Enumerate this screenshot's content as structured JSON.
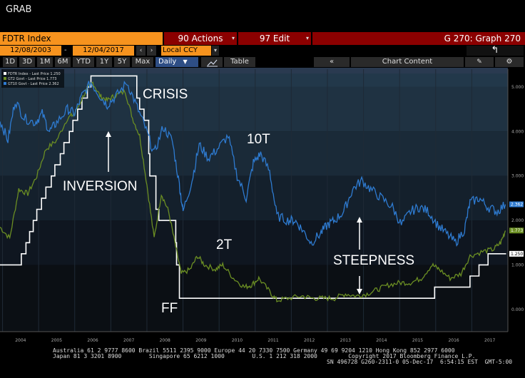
{
  "window": {
    "title": "GRAB"
  },
  "toolbar": {
    "ticker": "FDTR Index",
    "actions_label": "90 Actions",
    "edit_label": "97 Edit",
    "graph_title": "G 270: Graph 270",
    "date_from": "12/08/2003",
    "date_to": "12/04/2017",
    "currency": "Local CCY",
    "periods": [
      "1D",
      "3D",
      "1M",
      "6M",
      "YTD",
      "1Y",
      "5Y",
      "Max"
    ],
    "frequency": "Daily",
    "table_label": "Table",
    "chart_content_label": "Chart Content"
  },
  "legend": [
    {
      "label": "FDTR Index - Last Price  1.250",
      "color": "#ffffff"
    },
    {
      "label": "GT2 Govt - Last Price  1.773",
      "color": "#6b8e23"
    },
    {
      "label": "GT10 Govt - Last Price  2.362",
      "color": "#2e7bd1"
    }
  ],
  "annotations": {
    "crisis": "CRISIS",
    "ten_t": "10T",
    "inversion": "INVERSION",
    "two_t": "2T",
    "steepness": "STEEPNESS",
    "ff": "FF"
  },
  "footer": {
    "line1": "Australia 61 2 9777 8600 Brazil 5511 2395 9000 Europe 44 20 7330 7500 Germany 49 69 9204 1210 Hong Kong 852 2977 6000",
    "line2": "Japan 81 3 3201 8900        Singapore 65 6212 1000        U.S. 1 212 318 2000         Copyright 2017 Bloomberg Finance L.P.",
    "line3": "SN 496728 G260-2311-0 05-Dec-17  6:54:15 EST  GMT-5:00"
  },
  "colors": {
    "ff": "#ffffff",
    "gt2": "#6b8e23",
    "gt10": "#2e7bd1",
    "orange": "#f7931e",
    "darkred": "#8b0000"
  },
  "chart_data": {
    "type": "line",
    "x_ticks": [
      "2004",
      "2005",
      "2006",
      "2007",
      "2008",
      "2009",
      "2010",
      "2011",
      "2012",
      "2013",
      "2014",
      "2015",
      "2016",
      "2017"
    ],
    "y_ticks": [
      "0.000",
      "1.000",
      "2.000",
      "3.000",
      "4.000",
      "5.000"
    ],
    "ylim": [
      -0.5,
      5.4
    ],
    "xlim": [
      2003.93,
      2018.0
    ],
    "last_values": {
      "ff": "1.250",
      "gt2": "1.773",
      "gt10": "2.362"
    },
    "series": [
      {
        "name": "FDTR Index",
        "key": "ff",
        "points": [
          [
            2003.93,
            1.0
          ],
          [
            2004.5,
            1.0
          ],
          [
            2004.52,
            1.25
          ],
          [
            2004.65,
            1.5
          ],
          [
            2004.75,
            1.75
          ],
          [
            2004.85,
            2.0
          ],
          [
            2004.95,
            2.25
          ],
          [
            2005.08,
            2.5
          ],
          [
            2005.2,
            2.75
          ],
          [
            2005.35,
            3.0
          ],
          [
            2005.45,
            3.25
          ],
          [
            2005.6,
            3.5
          ],
          [
            2005.7,
            3.75
          ],
          [
            2005.85,
            4.0
          ],
          [
            2005.95,
            4.25
          ],
          [
            2006.08,
            4.5
          ],
          [
            2006.2,
            4.75
          ],
          [
            2006.35,
            5.0
          ],
          [
            2006.45,
            5.25
          ],
          [
            2007.7,
            5.25
          ],
          [
            2007.72,
            4.75
          ],
          [
            2007.8,
            4.5
          ],
          [
            2007.92,
            4.25
          ],
          [
            2008.05,
            3.5
          ],
          [
            2008.08,
            3.0
          ],
          [
            2008.25,
            2.25
          ],
          [
            2008.33,
            2.0
          ],
          [
            2008.8,
            1.5
          ],
          [
            2008.82,
            1.0
          ],
          [
            2008.9,
            0.25
          ],
          [
            2015.95,
            0.25
          ],
          [
            2015.97,
            0.5
          ],
          [
            2016.95,
            0.75
          ],
          [
            2017.2,
            1.0
          ],
          [
            2017.45,
            1.25
          ],
          [
            2017.95,
            1.25
          ]
        ]
      },
      {
        "name": "GT2 Govt",
        "key": "gt2",
        "points": [
          [
            2003.93,
            1.85
          ],
          [
            2004.2,
            1.6
          ],
          [
            2004.45,
            2.7
          ],
          [
            2004.7,
            2.6
          ],
          [
            2004.95,
            3.0
          ],
          [
            2005.2,
            3.6
          ],
          [
            2005.5,
            3.8
          ],
          [
            2005.8,
            4.3
          ],
          [
            2006.0,
            4.4
          ],
          [
            2006.3,
            4.9
          ],
          [
            2006.5,
            5.1
          ],
          [
            2006.7,
            4.8
          ],
          [
            2006.9,
            4.7
          ],
          [
            2007.1,
            4.8
          ],
          [
            2007.4,
            4.9
          ],
          [
            2007.6,
            4.3
          ],
          [
            2007.8,
            3.9
          ],
          [
            2008.0,
            2.8
          ],
          [
            2008.2,
            1.6
          ],
          [
            2008.4,
            2.6
          ],
          [
            2008.6,
            2.2
          ],
          [
            2008.8,
            1.4
          ],
          [
            2008.95,
            0.8
          ],
          [
            2009.2,
            0.9
          ],
          [
            2009.4,
            1.2
          ],
          [
            2009.6,
            1.0
          ],
          [
            2009.9,
            0.9
          ],
          [
            2010.1,
            1.0
          ],
          [
            2010.4,
            0.7
          ],
          [
            2010.7,
            0.5
          ],
          [
            2010.9,
            0.55
          ],
          [
            2011.1,
            0.7
          ],
          [
            2011.4,
            0.4
          ],
          [
            2011.6,
            0.2
          ],
          [
            2011.9,
            0.25
          ],
          [
            2012.3,
            0.3
          ],
          [
            2012.6,
            0.25
          ],
          [
            2012.9,
            0.25
          ],
          [
            2013.2,
            0.25
          ],
          [
            2013.5,
            0.35
          ],
          [
            2013.8,
            0.3
          ],
          [
            2014.1,
            0.35
          ],
          [
            2014.4,
            0.45
          ],
          [
            2014.7,
            0.55
          ],
          [
            2015.0,
            0.6
          ],
          [
            2015.3,
            0.6
          ],
          [
            2015.6,
            0.7
          ],
          [
            2015.9,
            1.0
          ],
          [
            2016.1,
            0.9
          ],
          [
            2016.4,
            0.7
          ],
          [
            2016.7,
            0.8
          ],
          [
            2016.95,
            1.2
          ],
          [
            2017.3,
            1.3
          ],
          [
            2017.6,
            1.35
          ],
          [
            2017.8,
            1.5
          ],
          [
            2017.93,
            1.77
          ]
        ]
      },
      {
        "name": "GT10 Govt",
        "key": "gt10",
        "points": [
          [
            2003.93,
            4.25
          ],
          [
            2004.15,
            3.8
          ],
          [
            2004.35,
            4.7
          ],
          [
            2004.6,
            4.3
          ],
          [
            2004.9,
            4.2
          ],
          [
            2005.1,
            4.4
          ],
          [
            2005.3,
            4.0
          ],
          [
            2005.5,
            4.2
          ],
          [
            2005.8,
            4.5
          ],
          [
            2006.0,
            4.4
          ],
          [
            2006.2,
            4.8
          ],
          [
            2006.45,
            5.1
          ],
          [
            2006.7,
            4.8
          ],
          [
            2006.9,
            4.6
          ],
          [
            2007.15,
            4.8
          ],
          [
            2007.45,
            5.1
          ],
          [
            2007.7,
            4.6
          ],
          [
            2007.95,
            4.1
          ],
          [
            2008.2,
            3.5
          ],
          [
            2008.45,
            4.1
          ],
          [
            2008.7,
            3.8
          ],
          [
            2008.9,
            2.8
          ],
          [
            2009.0,
            2.2
          ],
          [
            2009.25,
            2.9
          ],
          [
            2009.45,
            3.7
          ],
          [
            2009.7,
            3.4
          ],
          [
            2009.95,
            3.6
          ],
          [
            2010.25,
            3.9
          ],
          [
            2010.5,
            3.0
          ],
          [
            2010.75,
            2.5
          ],
          [
            2010.95,
            3.3
          ],
          [
            2011.15,
            3.5
          ],
          [
            2011.4,
            3.1
          ],
          [
            2011.6,
            2.1
          ],
          [
            2011.9,
            2.0
          ],
          [
            2012.1,
            2.0
          ],
          [
            2012.3,
            1.8
          ],
          [
            2012.55,
            1.5
          ],
          [
            2012.8,
            1.7
          ],
          [
            2013.0,
            1.9
          ],
          [
            2013.2,
            2.0
          ],
          [
            2013.45,
            2.2
          ],
          [
            2013.7,
            2.7
          ],
          [
            2013.95,
            2.9
          ],
          [
            2014.2,
            2.7
          ],
          [
            2014.5,
            2.5
          ],
          [
            2014.8,
            2.3
          ],
          [
            2015.05,
            1.9
          ],
          [
            2015.3,
            2.2
          ],
          [
            2015.55,
            2.3
          ],
          [
            2015.8,
            2.2
          ],
          [
            2016.05,
            1.9
          ],
          [
            2016.3,
            1.7
          ],
          [
            2016.55,
            1.5
          ],
          [
            2016.8,
            1.8
          ],
          [
            2016.95,
            2.4
          ],
          [
            2017.2,
            2.5
          ],
          [
            2017.45,
            2.3
          ],
          [
            2017.7,
            2.2
          ],
          [
            2017.93,
            2.36
          ]
        ]
      }
    ]
  }
}
